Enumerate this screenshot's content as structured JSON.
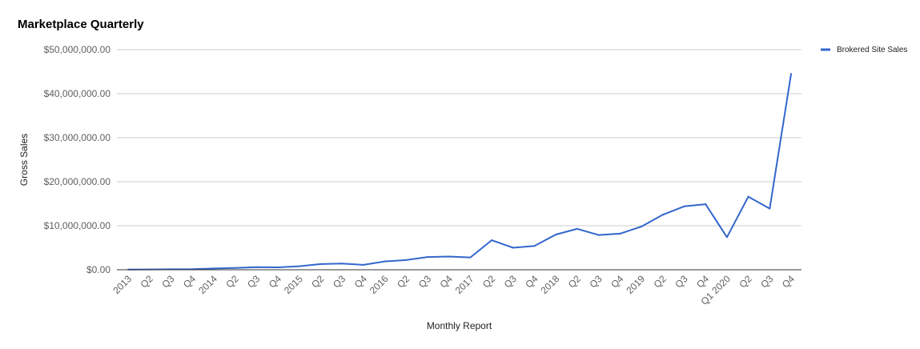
{
  "chart_data": {
    "type": "line",
    "title": "Marketplace Quarterly",
    "xlabel": "Monthly Report",
    "ylabel": "Gross Sales",
    "ylim": [
      0,
      50000000
    ],
    "yticks": [
      0,
      10000000,
      20000000,
      30000000,
      40000000,
      50000000
    ],
    "ytick_labels": [
      "$0.00",
      "$10,000,000.00",
      "$20,000,000.00",
      "$30,000,000.00",
      "$40,000,000.00",
      "$50,000,000.00"
    ],
    "grid": true,
    "legend_position": "right",
    "categories": [
      "2013",
      "Q2",
      "Q3",
      "Q4",
      "2014",
      "Q2",
      "Q3",
      "Q4",
      "2015",
      "Q2",
      "Q3",
      "Q4",
      "2016",
      "Q2",
      "Q3",
      "Q4",
      "2017",
      "Q2",
      "Q3",
      "Q4",
      "2018",
      "Q2",
      "Q3",
      "Q4",
      "2019",
      "Q2",
      "Q3",
      "Q4",
      "Q1 2020",
      "Q2",
      "Q3",
      "Q4"
    ],
    "series": [
      {
        "name": "Brokered Site Sales",
        "color": "#3366cc",
        "values": [
          50000,
          80000,
          100000,
          120000,
          300000,
          400000,
          600000,
          550000,
          800000,
          1300000,
          1400000,
          1100000,
          1900000,
          2200000,
          2900000,
          3000000,
          2800000,
          6700000,
          5000000,
          5400000,
          8000000,
          9300000,
          7900000,
          8200000,
          9800000,
          12500000,
          14400000,
          14900000,
          7400000,
          16600000,
          13900000,
          44500000
        ]
      }
    ]
  }
}
